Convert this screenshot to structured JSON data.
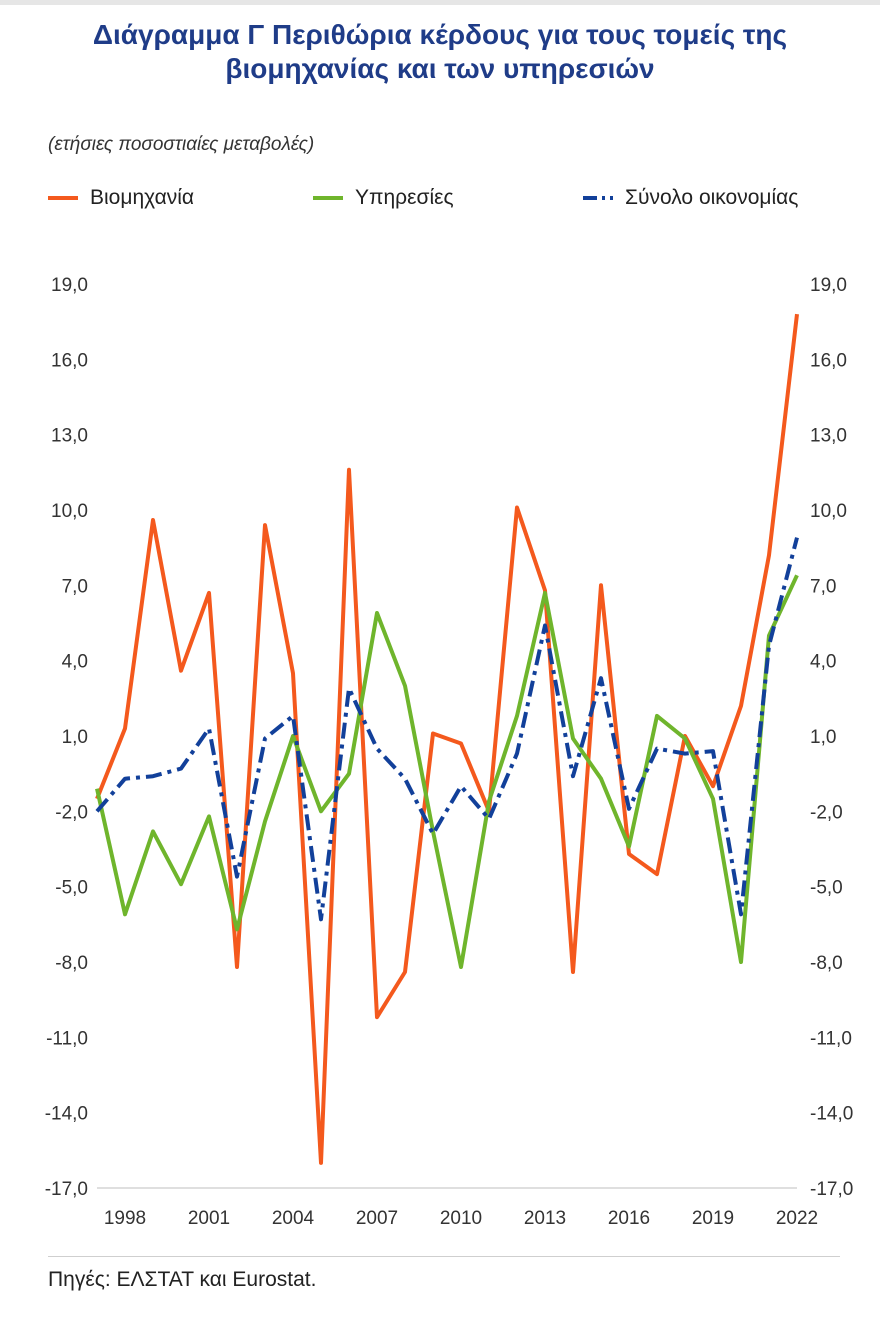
{
  "title": "Διάγραμμα Γ Περιθώρια κέρδους για τους τομείς της βιομηχανίας και των υπηρεσιών",
  "subtitle": "(ετήσιες ποσοστιαίες μεταβολές)",
  "source": "Πηγές: ΕΛΣΤΑΤ και Eurostat.",
  "colors": {
    "industry": "#f4591d",
    "services": "#6fb52c",
    "total": "#12409a",
    "title": "#1f3c88"
  },
  "chart_data": {
    "type": "line",
    "title": "Διάγραμμα Γ Περιθώρια κέρδους για τους τομείς της βιομηχανίας και των υπηρεσιών",
    "subtitle": "(ετήσιες ποσοστιαίες μεταβολές)",
    "x": [
      1997,
      1998,
      1999,
      2000,
      2001,
      2002,
      2003,
      2004,
      2005,
      2006,
      2007,
      2008,
      2009,
      2010,
      2011,
      2012,
      2013,
      2014,
      2015,
      2016,
      2017,
      2018,
      2019,
      2020,
      2021,
      2022
    ],
    "x_tick_labels": [
      "1998",
      "2001",
      "2004",
      "2007",
      "2010",
      "2013",
      "2016",
      "2019",
      "2022"
    ],
    "x_tick_years": [
      1998,
      2001,
      2004,
      2007,
      2010,
      2013,
      2016,
      2019,
      2022
    ],
    "y_tick_labels": [
      "19,0",
      "16,0",
      "13,0",
      "10,0",
      "7,0",
      "4,0",
      "1,0",
      "-2,0",
      "-5,0",
      "-8,0",
      "-11,0",
      "-14,0",
      "-17,0"
    ],
    "y_tick_values": [
      19,
      16,
      13,
      10,
      7,
      4,
      1,
      -2,
      -5,
      -8,
      -11,
      -14,
      -17
    ],
    "ylim": [
      -17,
      19
    ],
    "xlabel": "",
    "ylabel": "",
    "grid": false,
    "legend_position": "top",
    "series": [
      {
        "name": "Βιομηχανία",
        "key": "industry",
        "style": "solid",
        "values": [
          -1.5,
          1.3,
          9.6,
          3.6,
          6.7,
          -8.2,
          9.4,
          3.5,
          -16.0,
          11.6,
          -10.2,
          -8.4,
          1.1,
          0.7,
          -2.0,
          10.1,
          6.8,
          -8.4,
          7.0,
          -3.7,
          -4.5,
          1.0,
          -1.0,
          2.2,
          8.2,
          17.8
        ]
      },
      {
        "name": "Υπηρεσίες",
        "key": "services",
        "style": "solid",
        "values": [
          -1.1,
          -6.1,
          -2.8,
          -4.9,
          -2.2,
          -6.7,
          -2.4,
          1.0,
          -2.0,
          -0.5,
          5.9,
          3.0,
          -2.8,
          -8.2,
          -1.6,
          1.8,
          6.7,
          0.9,
          -0.7,
          -3.4,
          1.8,
          0.9,
          -1.5,
          -8.0,
          5.0,
          7.4
        ]
      },
      {
        "name": "Σύνολο οικονομίας",
        "key": "total",
        "style": "dashdot",
        "values": [
          -2.0,
          -0.7,
          -0.6,
          -0.3,
          1.3,
          -4.6,
          0.9,
          1.8,
          -6.3,
          2.9,
          0.5,
          -0.7,
          -2.9,
          -1.0,
          -2.3,
          0.3,
          5.4,
          -0.6,
          3.3,
          -1.9,
          0.5,
          0.3,
          0.4,
          -6.1,
          4.6,
          8.9
        ]
      }
    ]
  }
}
